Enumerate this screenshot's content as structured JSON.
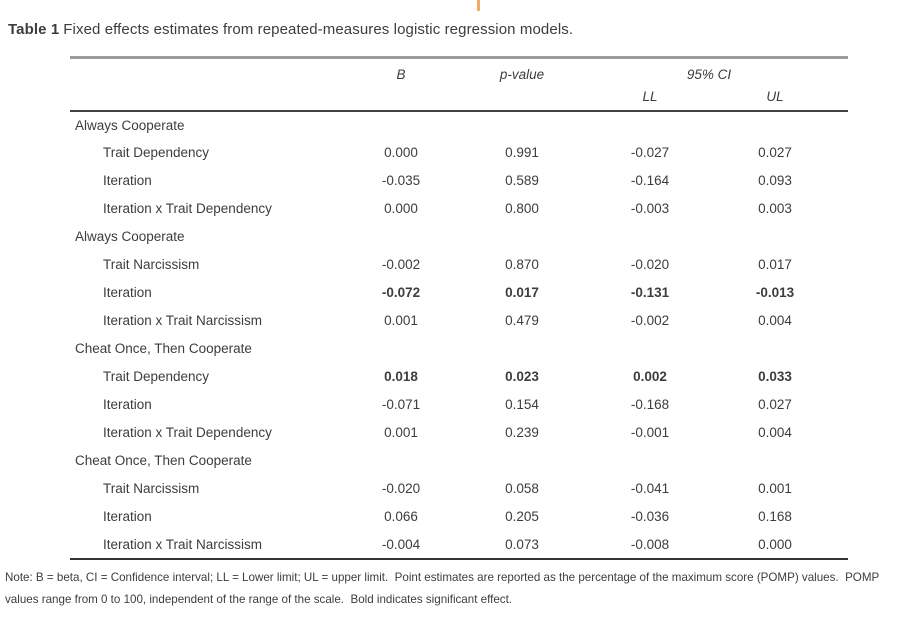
{
  "page": {
    "accent_color": "#f2a964",
    "title_label": "Table 1",
    "title_text": "Fixed effects estimates from repeated-measures logistic regression models."
  },
  "table": {
    "columns": {
      "b": "B",
      "p": "p-value",
      "ci": "95% CI",
      "ll": "LL",
      "ul": "UL"
    },
    "sections": [
      {
        "header": "Always Cooperate",
        "rows": [
          {
            "label": "Trait Dependency",
            "b": "0.000",
            "p": "0.991",
            "ll": "-0.027",
            "ul": "0.027",
            "significant": false
          },
          {
            "label": "Iteration",
            "b": "-0.035",
            "p": "0.589",
            "ll": "-0.164",
            "ul": "0.093",
            "significant": false
          },
          {
            "label": "Iteration x Trait Dependency",
            "b": "0.000",
            "p": "0.800",
            "ll": "-0.003",
            "ul": "0.003",
            "significant": false
          }
        ]
      },
      {
        "header": "Always Cooperate",
        "rows": [
          {
            "label": "Trait Narcissism",
            "b": "-0.002",
            "p": "0.870",
            "ll": "-0.020",
            "ul": "0.017",
            "significant": false
          },
          {
            "label": "Iteration",
            "b": "-0.072",
            "p": "0.017",
            "ll": "-0.131",
            "ul": "-0.013",
            "significant": true
          },
          {
            "label": "Iteration x Trait Narcissism",
            "b": "0.001",
            "p": "0.479",
            "ll": "-0.002",
            "ul": "0.004",
            "significant": false
          }
        ]
      },
      {
        "header": "Cheat Once, Then Cooperate",
        "rows": [
          {
            "label": "Trait Dependency",
            "b": "0.018",
            "p": "0.023",
            "ll": "0.002",
            "ul": "0.033",
            "significant": true
          },
          {
            "label": "Iteration",
            "b": "-0.071",
            "p": "0.154",
            "ll": "-0.168",
            "ul": "0.027",
            "significant": false
          },
          {
            "label": "Iteration x Trait Dependency",
            "b": "0.001",
            "p": "0.239",
            "ll": "-0.001",
            "ul": "0.004",
            "significant": false
          }
        ]
      },
      {
        "header": "Cheat Once, Then Cooperate",
        "rows": [
          {
            "label": "Trait Narcissism",
            "b": "-0.020",
            "p": "0.058",
            "ll": "-0.041",
            "ul": "0.001",
            "significant": false
          },
          {
            "label": "Iteration",
            "b": "0.066",
            "p": "0.205",
            "ll": "-0.036",
            "ul": "0.168",
            "significant": false
          },
          {
            "label": "Iteration x Trait Narcissism",
            "b": "-0.004",
            "p": "0.073",
            "ll": "-0.008",
            "ul": "0.000",
            "significant": false
          }
        ]
      }
    ]
  },
  "note": {
    "text": "Note: B = beta, CI = Confidence interval; LL = Lower limit; UL = upper limit.  Point estimates are reported as the percentage of the maximum score (POMP) values.  POMP values range from 0 to 100, independent of the range of the scale.  Bold indicates significant effect."
  }
}
